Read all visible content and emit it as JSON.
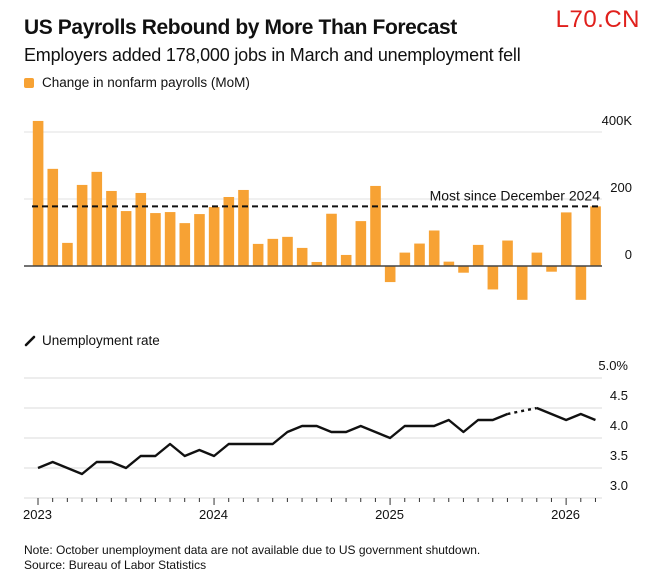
{
  "header": {
    "title": "US Payrolls Rebound by More Than Forecast",
    "subtitle": "Employers added 178,000 jobs in March and unemployment fell",
    "watermark": "L70.CN"
  },
  "footer": {
    "note": "Note: October unemployment data are not available due to US government shutdown.",
    "source": "Source: Bureau of Labor Statistics"
  },
  "colors": {
    "bar": "#f7a234",
    "line": "#111111",
    "grid": "#e2e2e2",
    "watermark": "#e0201c"
  },
  "chart_data": [
    {
      "type": "bar",
      "title": "Change in nonfarm payrolls (MoM)",
      "legend": "Change in nonfarm payrolls (MoM)",
      "legend_position": "top-left",
      "y_unit": "thousands",
      "ylim": [
        -100,
        440
      ],
      "yticks": [
        0,
        200,
        400
      ],
      "ytick_labels": [
        "0",
        "200",
        "400K"
      ],
      "grid": true,
      "reference_line": {
        "value": 178,
        "label": "Most since December 2024",
        "style": "dashed"
      },
      "x": [
        "2023-01",
        "2023-02",
        "2023-03",
        "2023-04",
        "2023-05",
        "2023-06",
        "2023-07",
        "2023-08",
        "2023-09",
        "2023-10",
        "2023-11",
        "2023-12",
        "2024-01",
        "2024-02",
        "2024-03",
        "2024-04",
        "2024-05",
        "2024-06",
        "2024-07",
        "2024-08",
        "2024-09",
        "2024-10",
        "2024-11",
        "2024-12",
        "2025-01",
        "2025-02",
        "2025-03",
        "2025-04",
        "2025-05",
        "2025-06",
        "2025-07",
        "2025-08",
        "2025-09",
        "2025-10",
        "2025-11",
        "2025-12",
        "2026-01",
        "2026-02",
        "2026-03"
      ],
      "values": [
        433,
        290,
        69,
        242,
        281,
        224,
        164,
        218,
        158,
        161,
        128,
        155,
        176,
        206,
        227,
        66,
        81,
        87,
        54,
        12,
        156,
        33,
        134,
        239,
        -48,
        40,
        67,
        106,
        13,
        -20,
        63,
        -70,
        76,
        -101,
        40,
        -17,
        160,
        -101,
        178
      ]
    },
    {
      "type": "line",
      "title": "Unemployment rate",
      "legend": "Unemployment rate",
      "legend_position": "top-left",
      "y_unit": "%",
      "ylim": [
        3.0,
        5.0
      ],
      "yticks": [
        3.0,
        3.5,
        4.0,
        4.5,
        5.0
      ],
      "ytick_labels": [
        "3.0",
        "3.5",
        "4.0",
        "4.5",
        "5.0%"
      ],
      "xtick_labels": [
        "2023",
        "2024",
        "2025",
        "2026"
      ],
      "grid": true,
      "missing_note": "2025-10 not available (dotted segment)",
      "x": [
        "2023-01",
        "2023-02",
        "2023-03",
        "2023-04",
        "2023-05",
        "2023-06",
        "2023-07",
        "2023-08",
        "2023-09",
        "2023-10",
        "2023-11",
        "2023-12",
        "2024-01",
        "2024-02",
        "2024-03",
        "2024-04",
        "2024-05",
        "2024-06",
        "2024-07",
        "2024-08",
        "2024-09",
        "2024-10",
        "2024-11",
        "2024-12",
        "2025-01",
        "2025-02",
        "2025-03",
        "2025-04",
        "2025-05",
        "2025-06",
        "2025-07",
        "2025-08",
        "2025-09",
        "2025-10",
        "2025-11",
        "2025-12",
        "2026-01",
        "2026-02",
        "2026-03"
      ],
      "values": [
        3.5,
        3.6,
        3.5,
        3.4,
        3.6,
        3.6,
        3.5,
        3.7,
        3.7,
        3.9,
        3.7,
        3.8,
        3.7,
        3.9,
        3.9,
        3.9,
        3.9,
        4.1,
        4.2,
        4.2,
        4.1,
        4.1,
        4.2,
        4.1,
        4.0,
        4.2,
        4.2,
        4.2,
        4.3,
        4.1,
        4.3,
        4.3,
        4.4,
        null,
        4.5,
        4.4,
        4.3,
        4.4,
        4.3
      ]
    }
  ]
}
